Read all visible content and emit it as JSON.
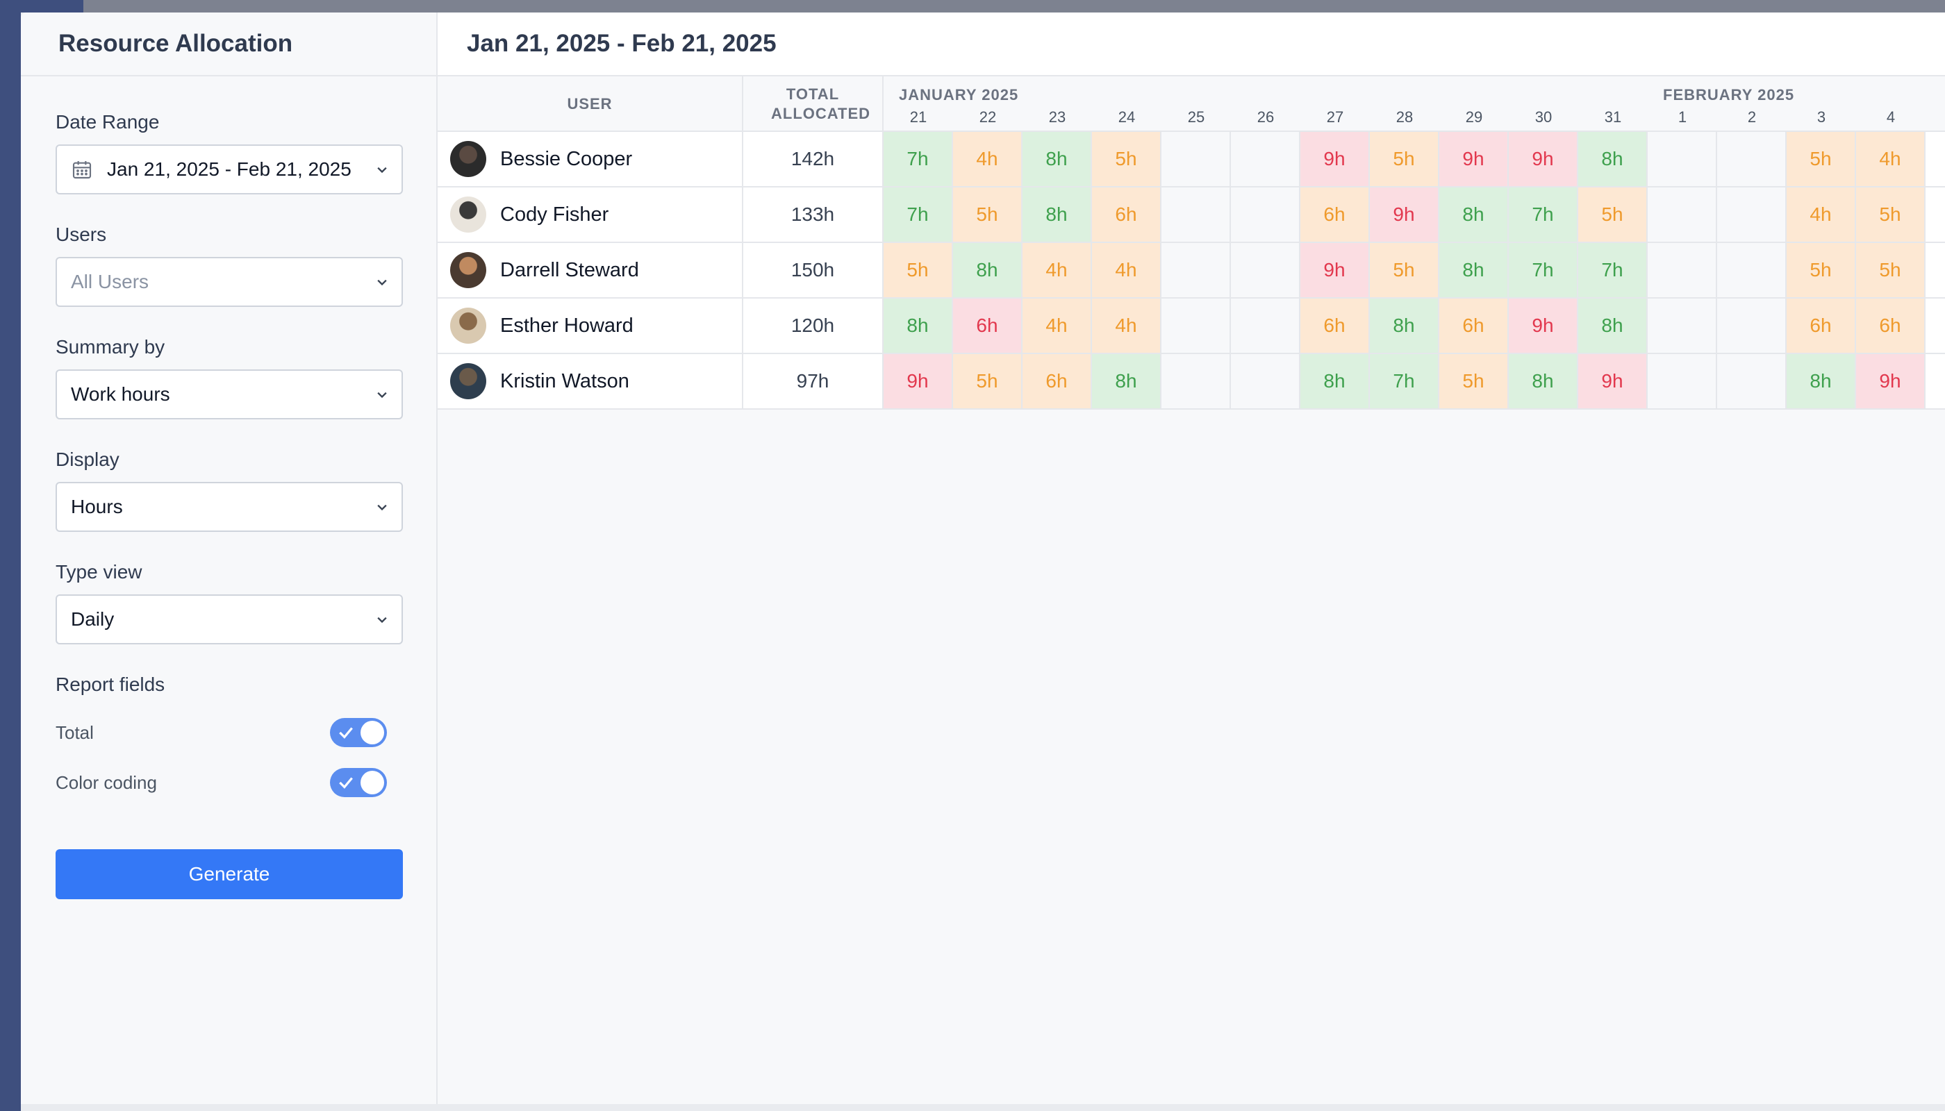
{
  "app": {
    "title": "Resource Allocation"
  },
  "header": {
    "range_title": "Jan 21, 2025 - Feb 21, 2025"
  },
  "filters": {
    "date_range": {
      "label": "Date Range",
      "value": "Jan 21, 2025 - Feb 21, 2025",
      "icon": "calendar-icon"
    },
    "users": {
      "label": "Users",
      "placeholder": "All Users"
    },
    "summary_by": {
      "label": "Summary by",
      "value": "Work hours"
    },
    "display": {
      "label": "Display",
      "value": "Hours"
    },
    "type_view": {
      "label": "Type view",
      "value": "Daily"
    }
  },
  "report_fields": {
    "label": "Report fields",
    "total": {
      "label": "Total",
      "enabled": true
    },
    "color_coding": {
      "label": "Color coding",
      "enabled": true
    }
  },
  "generate_label": "Generate",
  "table": {
    "col_user": "USER",
    "col_total": "TOTAL ALLOCATED",
    "months": [
      "JANUARY 2025",
      "FEBRUARY 2025"
    ],
    "days": [
      "21",
      "22",
      "23",
      "24",
      "25",
      "26",
      "27",
      "28",
      "29",
      "30",
      "31",
      "1",
      "2",
      "3",
      "4"
    ],
    "rows": [
      {
        "name": "Bessie Cooper",
        "total": "142h",
        "cells": [
          "7h",
          "4h",
          "8h",
          "5h",
          "",
          "",
          "9h",
          "5h",
          "9h",
          "9h",
          "8h",
          "",
          "",
          "5h",
          "4h"
        ]
      },
      {
        "name": "Cody Fisher",
        "total": "133h",
        "cells": [
          "7h",
          "5h",
          "8h",
          "6h",
          "",
          "",
          "6h",
          "9h",
          "8h",
          "7h",
          "5h",
          "",
          "",
          "4h",
          "5h"
        ]
      },
      {
        "name": "Darrell Steward",
        "total": "150h",
        "cells": [
          "5h",
          "8h",
          "4h",
          "4h",
          "",
          "",
          "9h",
          "5h",
          "8h",
          "7h",
          "7h",
          "",
          "",
          "5h",
          "5h"
        ]
      },
      {
        "name": "Esther Howard",
        "total": "120h",
        "cells": [
          "8h",
          "6h",
          "4h",
          "4h",
          "",
          "",
          "6h",
          "8h",
          "6h",
          "9h",
          "8h",
          "",
          "",
          "6h",
          "6h"
        ]
      },
      {
        "name": "Kristin Watson",
        "total": "97h",
        "cells": [
          "9h",
          "5h",
          "6h",
          "8h",
          "",
          "",
          "8h",
          "7h",
          "5h",
          "8h",
          "9h",
          "",
          "",
          "8h",
          "9h"
        ]
      }
    ],
    "colors": {
      "bessie": [
        "g",
        "o",
        "g",
        "o",
        "e",
        "e",
        "r",
        "o",
        "r",
        "r",
        "g",
        "e",
        "e",
        "o",
        "o"
      ],
      "cody": [
        "g",
        "o",
        "g",
        "o",
        "e",
        "e",
        "o",
        "r",
        "g",
        "g",
        "o",
        "e",
        "e",
        "o",
        "o"
      ],
      "darrell": [
        "o",
        "g",
        "o",
        "o",
        "e",
        "e",
        "r",
        "o",
        "g",
        "g",
        "g",
        "e",
        "e",
        "o",
        "o"
      ],
      "esther": [
        "g",
        "r",
        "o",
        "o",
        "e",
        "e",
        "o",
        "g",
        "o",
        "r",
        "g",
        "e",
        "e",
        "o",
        "o"
      ],
      "kristin": [
        "r",
        "o",
        "o",
        "g",
        "e",
        "e",
        "g",
        "g",
        "o",
        "g",
        "r",
        "e",
        "e",
        "g",
        "r"
      ]
    }
  },
  "palette": {
    "accent": "#3478f6",
    "green_bg": "#dcf1df",
    "orange_bg": "#fde8d3",
    "red_bg": "#fbdde2"
  }
}
